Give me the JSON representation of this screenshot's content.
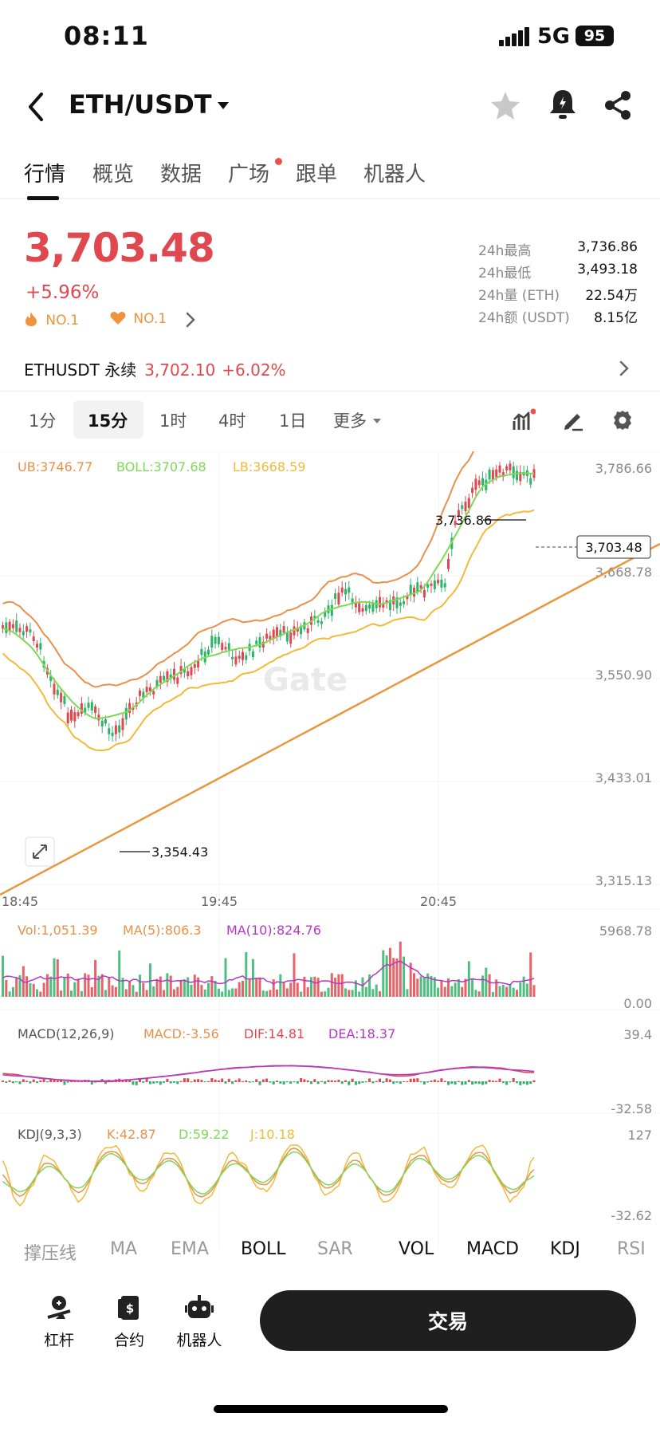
{
  "status": {
    "time": "08:11",
    "network": "5G",
    "battery": "95"
  },
  "header": {
    "pair": "ETH/USDT"
  },
  "tabs": [
    {
      "label": "行情",
      "active": true
    },
    {
      "label": "概览"
    },
    {
      "label": "数据"
    },
    {
      "label": "广场",
      "dot": true
    },
    {
      "label": "跟单"
    },
    {
      "label": "机器人"
    }
  ],
  "ticker": {
    "price": "3,703.48",
    "change": "+5.96%",
    "rank_hot": "NO.1",
    "rank_fav": "NO.1",
    "stats": [
      {
        "k": "24h最高",
        "v": "3,736.86"
      },
      {
        "k": "24h最低",
        "v": "3,493.18"
      },
      {
        "k": "24h量 (ETH)",
        "v": "22.54万"
      },
      {
        "k": "24h额 (USDT)",
        "v": "8.15亿"
      }
    ]
  },
  "perp": {
    "name": "ETHUSDT 永续",
    "price": "3,702.10",
    "change": "+6.02%"
  },
  "intervals": [
    "1分",
    "15分",
    "1时",
    "4时",
    "1日",
    "更多"
  ],
  "intervals_active": "15分",
  "chart": {
    "boll": {
      "ub": "UB:3746.77",
      "mid": "BOLL:3707.68",
      "lb": "LB:3668.59"
    },
    "y_ticks": [
      "3,786.66",
      "3,668.78",
      "3,550.90",
      "3,433.01",
      "3,315.13"
    ],
    "x_ticks": [
      "18:45",
      "19:45",
      "20:45"
    ],
    "high_label": "3,736.86",
    "low_label": "3,354.43",
    "last_label": "3,703.48",
    "watermark": "Gate",
    "vol": {
      "vol": "Vol:1,051.39",
      "ma5": "MA(5):806.3",
      "ma10": "MA(10):824.76",
      "top": "5968.78",
      "bottom": "0.00"
    },
    "macd": {
      "title": "MACD(12,26,9)",
      "macd": "MACD:-3.56",
      "dif": "DIF:14.81",
      "dea": "DEA:18.37",
      "top": "39.4",
      "bottom": "-32.58"
    },
    "kdj": {
      "title": "KDJ(9,3,3)",
      "k": "K:42.87",
      "d": "D:59.22",
      "j": "J:10.18",
      "top": "127",
      "bottom": "-32.62"
    }
  },
  "indicators": [
    {
      "label": "撑压线",
      "on": false
    },
    {
      "label": "MA",
      "on": false
    },
    {
      "label": "EMA",
      "on": false
    },
    {
      "label": "BOLL",
      "on": true
    },
    {
      "label": "SAR",
      "on": false
    },
    {
      "label": "VOL",
      "on": true
    },
    {
      "label": "MACD",
      "on": true
    },
    {
      "label": "KDJ",
      "on": true
    },
    {
      "label": "RSI",
      "on": false
    }
  ],
  "bottom_nav": [
    {
      "label": "杠杆",
      "icon": "leverage-icon"
    },
    {
      "label": "合约",
      "icon": "contract-icon"
    },
    {
      "label": "机器人",
      "icon": "robot-icon"
    }
  ],
  "trade_button": "交易",
  "colors": {
    "up": "#e0484f",
    "down": "#2fb36b",
    "ub": "#e8914a",
    "mid": "#7ed957",
    "lb": "#f2b93b",
    "trend": "#e8973e",
    "dea": "#b538c4"
  }
}
